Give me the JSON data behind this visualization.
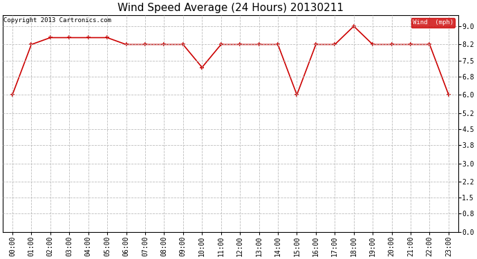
{
  "title": "Wind Speed Average (24 Hours) 20130211",
  "copyright": "Copyright 2013 Cartronics.com",
  "legend_label": "Wind  (mph)",
  "legend_bg": "#cc0000",
  "legend_text_color": "#ffffff",
  "x_labels": [
    "00:00",
    "01:00",
    "02:00",
    "03:00",
    "04:00",
    "05:00",
    "06:00",
    "07:00",
    "08:00",
    "09:00",
    "10:00",
    "11:00",
    "12:00",
    "13:00",
    "14:00",
    "15:00",
    "16:00",
    "17:00",
    "18:00",
    "19:00",
    "20:00",
    "21:00",
    "22:00",
    "23:00"
  ],
  "y_values": [
    6.0,
    8.2,
    8.5,
    8.5,
    8.5,
    8.5,
    8.2,
    8.2,
    8.2,
    8.2,
    7.2,
    8.2,
    8.2,
    8.2,
    8.2,
    6.0,
    8.2,
    8.2,
    9.0,
    8.2,
    8.2,
    8.2,
    8.2,
    6.0
  ],
  "line_color": "#cc0000",
  "marker": "+",
  "marker_size": 5,
  "marker_edge_width": 1.2,
  "line_width": 1.2,
  "bg_color": "#ffffff",
  "plot_bg_color": "#ffffff",
  "grid_color": "#bbbbbb",
  "grid_style": "--",
  "ylim": [
    0.0,
    9.49
  ],
  "yticks": [
    0.0,
    0.8,
    1.5,
    2.2,
    3.0,
    3.8,
    4.5,
    5.2,
    6.0,
    6.8,
    7.5,
    8.2,
    9.0
  ],
  "title_fontsize": 11,
  "tick_fontsize": 7,
  "copyright_fontsize": 6.5
}
